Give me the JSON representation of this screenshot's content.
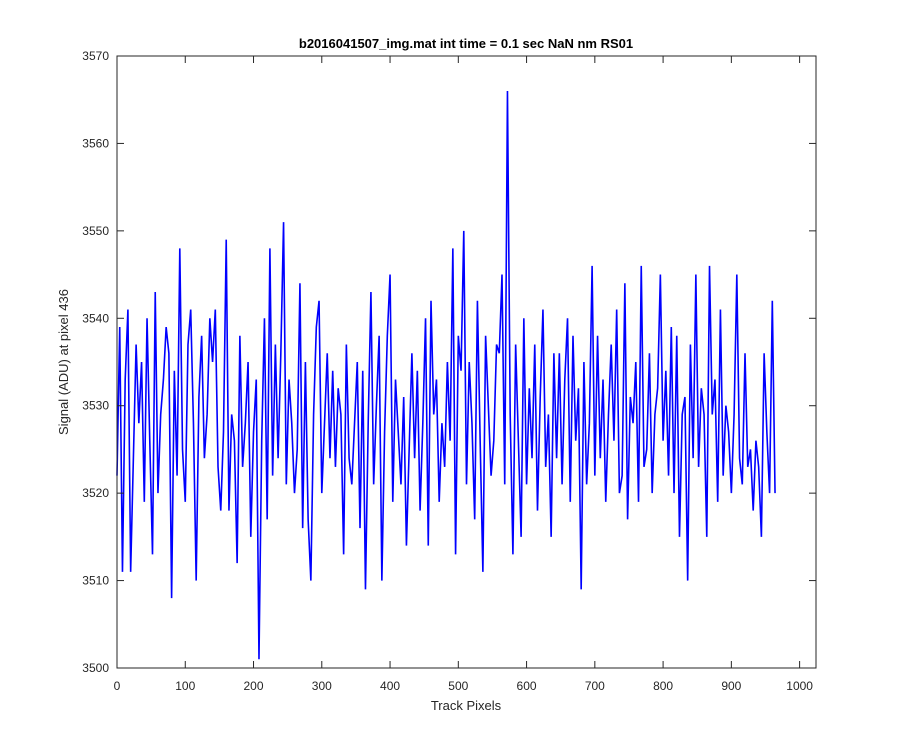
{
  "chart_data": {
    "type": "line",
    "title": "b2016041507_img.mat int time = 0.1 sec  NaN nm RS01",
    "xlabel": "Track Pixels",
    "ylabel": "Signal (ADU) at pixel 436",
    "xlim": [
      0,
      1024
    ],
    "ylim": [
      3500,
      3570
    ],
    "xticks": [
      0,
      100,
      200,
      300,
      400,
      500,
      600,
      700,
      800,
      900,
      1000
    ],
    "yticks": [
      3500,
      3510,
      3520,
      3530,
      3540,
      3550,
      3560,
      3570
    ],
    "grid": false,
    "line_color": "#0000ff",
    "series": [
      {
        "name": "",
        "sampling": "One sampled point per 4 track pixels (x = 0, 4, 8, ... 1020) approximating a noisy trace around 3528 ADU; notable extremes: spike to 3566 near x=576, dip to 3501 near x=197.",
        "x_start": 0,
        "x_step": 4,
        "y": [
          3522,
          3539,
          3511,
          3533,
          3541,
          3511,
          3524,
          3537,
          3528,
          3535,
          3519,
          3540,
          3526,
          3513,
          3543,
          3520,
          3529,
          3533,
          3539,
          3536,
          3508,
          3534,
          3522,
          3548,
          3525,
          3519,
          3537,
          3541,
          3528,
          3510,
          3531,
          3538,
          3524,
          3529,
          3540,
          3535,
          3541,
          3523,
          3518,
          3527,
          3549,
          3518,
          3529,
          3526,
          3512,
          3538,
          3523,
          3528,
          3535,
          3515,
          3527,
          3533,
          3501,
          3526,
          3540,
          3517,
          3548,
          3522,
          3537,
          3524,
          3536,
          3551,
          3521,
          3533,
          3528,
          3520,
          3525,
          3544,
          3516,
          3535,
          3517,
          3510,
          3529,
          3539,
          3542,
          3520,
          3528,
          3536,
          3524,
          3534,
          3523,
          3532,
          3529,
          3513,
          3537,
          3524,
          3521,
          3528,
          3535,
          3516,
          3534,
          3509,
          3528,
          3543,
          3521,
          3530,
          3538,
          3510,
          3527,
          3538,
          3545,
          3519,
          3533,
          3527,
          3521,
          3531,
          3514,
          3525,
          3536,
          3524,
          3534,
          3518,
          3528,
          3540,
          3514,
          3542,
          3529,
          3533,
          3519,
          3528,
          3523,
          3535,
          3526,
          3548,
          3513,
          3538,
          3534,
          3550,
          3521,
          3535,
          3528,
          3517,
          3542,
          3526,
          3511,
          3538,
          3530,
          3522,
          3526,
          3537,
          3536,
          3545,
          3521,
          3566,
          3529,
          3513,
          3537,
          3526,
          3515,
          3540,
          3521,
          3532,
          3524,
          3537,
          3518,
          3531,
          3541,
          3523,
          3529,
          3515,
          3536,
          3524,
          3536,
          3521,
          3533,
          3540,
          3519,
          3538,
          3526,
          3532,
          3509,
          3535,
          3521,
          3528,
          3546,
          3522,
          3538,
          3524,
          3533,
          3519,
          3529,
          3537,
          3526,
          3541,
          3520,
          3522,
          3544,
          3517,
          3531,
          3528,
          3535,
          3519,
          3546,
          3523,
          3525,
          3536,
          3520,
          3529,
          3532,
          3545,
          3526,
          3534,
          3522,
          3539,
          3520,
          3538,
          3515,
          3529,
          3531,
          3510,
          3537,
          3524,
          3545,
          3523,
          3532,
          3529,
          3515,
          3546,
          3529,
          3533,
          3519,
          3541,
          3522,
          3530,
          3527,
          3520,
          3529,
          3545,
          3524,
          3521,
          3536,
          3523,
          3525,
          3518,
          3526,
          3523,
          3515,
          3536,
          3527,
          3520,
          3542,
          3520
        ]
      }
    ]
  }
}
